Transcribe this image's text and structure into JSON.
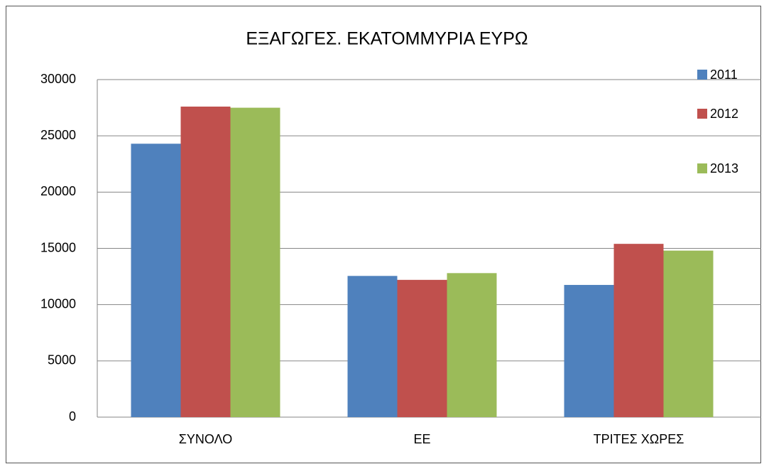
{
  "chart_data": {
    "type": "bar",
    "title": "ΕΞΑΓΩΓΕΣ. ΕΚΑΤΟΜΜΥΡΙΑ ΕΥΡΩ",
    "categories": [
      "ΣΥΝΟΛΟ",
      "ΕΕ",
      "ΤΡΙΤΕΣ ΧΩΡΕΣ"
    ],
    "series": [
      {
        "name": "2011",
        "color": "#4f81bd",
        "values": [
          24300,
          12550,
          11750
        ]
      },
      {
        "name": "2012",
        "color": "#c0504d",
        "values": [
          27600,
          12200,
          15400
        ]
      },
      {
        "name": "2013",
        "color": "#9bbb59",
        "values": [
          27500,
          12800,
          14800
        ]
      }
    ],
    "ylim": [
      0,
      30000
    ],
    "yticks": [
      0,
      5000,
      10000,
      15000,
      20000,
      25000,
      30000
    ],
    "grid": true,
    "legend": "right"
  }
}
